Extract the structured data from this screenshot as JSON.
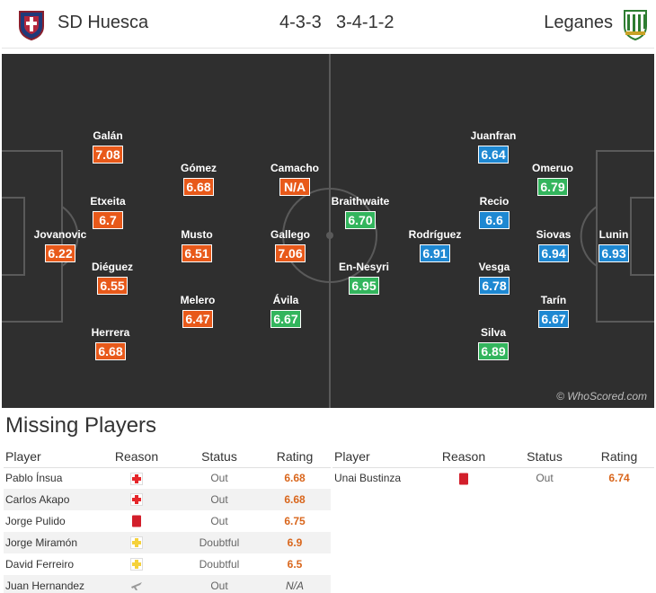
{
  "header": {
    "home_team": "SD Huesca",
    "away_team": "Leganes",
    "home_formation": "4-3-3",
    "away_formation": "3-4-1-2"
  },
  "pitch": {
    "watermark": "© WhoScored.com",
    "home_players": [
      {
        "name": "Jovanovic",
        "rating": "6.22",
        "color": "orange"
      },
      {
        "name": "Galán",
        "rating": "7.08",
        "color": "orange"
      },
      {
        "name": "Etxeita",
        "rating": "6.7",
        "color": "orange"
      },
      {
        "name": "Diéguez",
        "rating": "6.55",
        "color": "orange"
      },
      {
        "name": "Herrera",
        "rating": "6.68",
        "color": "orange"
      },
      {
        "name": "Gómez",
        "rating": "6.68",
        "color": "orange"
      },
      {
        "name": "Musto",
        "rating": "6.51",
        "color": "orange"
      },
      {
        "name": "Melero",
        "rating": "6.47",
        "color": "orange"
      },
      {
        "name": "Camacho",
        "rating": "N/A",
        "color": "orange"
      },
      {
        "name": "Gallego",
        "rating": "7.06",
        "color": "orange"
      },
      {
        "name": "Ávila",
        "rating": "6.67",
        "color": "green"
      }
    ],
    "away_players": [
      {
        "name": "Braithwaite",
        "rating": "6.70",
        "color": "green"
      },
      {
        "name": "En-Nesyri",
        "rating": "6.95",
        "color": "green"
      },
      {
        "name": "Rodríguez",
        "rating": "6.91",
        "color": "blue"
      },
      {
        "name": "Juanfran",
        "rating": "6.64",
        "color": "blue"
      },
      {
        "name": "Recio",
        "rating": "6.6",
        "color": "blue"
      },
      {
        "name": "Vesga",
        "rating": "6.78",
        "color": "blue"
      },
      {
        "name": "Silva",
        "rating": "6.89",
        "color": "green"
      },
      {
        "name": "Omeruo",
        "rating": "6.79",
        "color": "green"
      },
      {
        "name": "Siovas",
        "rating": "6.94",
        "color": "blue"
      },
      {
        "name": "Tarín",
        "rating": "6.67",
        "color": "blue"
      },
      {
        "name": "Lunin",
        "rating": "6.93",
        "color": "blue"
      }
    ]
  },
  "missing": {
    "title": "Missing Players",
    "headers": {
      "player": "Player",
      "reason": "Reason",
      "status": "Status",
      "rating": "Rating"
    },
    "home": [
      {
        "player": "Pablo Ínsua",
        "reason_icon": "injury-cross-icon",
        "status": "Out",
        "rating": "6.68"
      },
      {
        "player": "Carlos Akapo",
        "reason_icon": "injury-cross-icon",
        "status": "Out",
        "rating": "6.68"
      },
      {
        "player": "Jorge Pulido",
        "reason_icon": "red-card-icon",
        "status": "Out",
        "rating": "6.75"
      },
      {
        "player": "Jorge Miramón",
        "reason_icon": "doubtful-cross-icon",
        "status": "Doubtful",
        "rating": "6.9"
      },
      {
        "player": "David Ferreiro",
        "reason_icon": "doubtful-cross-icon",
        "status": "Doubtful",
        "rating": "6.5"
      },
      {
        "player": "Juan Hernandez",
        "reason_icon": "plane-icon",
        "status": "Out",
        "rating": "N/A"
      }
    ],
    "away": [
      {
        "player": "Unai Bustinza",
        "reason_icon": "red-card-icon",
        "status": "Out",
        "rating": "6.74"
      }
    ]
  },
  "colors": {
    "pitch": "#2f2f2f",
    "rating_orange": "#e8591a",
    "rating_green": "#33b55d",
    "rating_blue": "#1e88d2",
    "injury_red": "#e5262a",
    "doubtful_yellow": "#f5d13b"
  }
}
